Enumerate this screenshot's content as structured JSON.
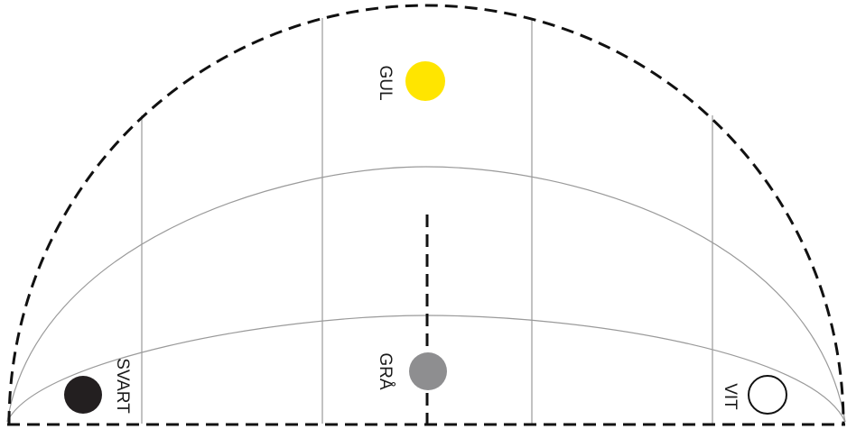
{
  "colors": {
    "yellow": "#ffe500",
    "gray": "#8e8e90",
    "black": "#231f20",
    "white": "#ffffff",
    "outline": "#111111",
    "grid": "#9a9a9a"
  },
  "points": {
    "gul": {
      "label": "GUL"
    },
    "gra": {
      "label": "GRÅ"
    },
    "svart": {
      "label": "SVART"
    },
    "vit": {
      "label": "VIT"
    }
  }
}
